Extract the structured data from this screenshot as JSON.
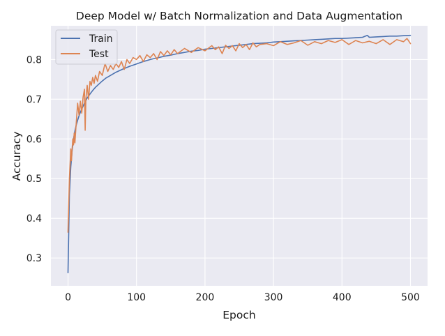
{
  "chart_data": {
    "type": "line",
    "title": "Deep Model w/ Batch Normalization and Data Augmentation",
    "xlabel": "Epoch",
    "ylabel": "Accuracy",
    "xlim": [
      -25,
      525
    ],
    "ylim": [
      0.23,
      0.885
    ],
    "xticks": [
      0,
      100,
      200,
      300,
      400,
      500
    ],
    "yticks": [
      0.3,
      0.4,
      0.5,
      0.6,
      0.7,
      0.8
    ],
    "grid": true,
    "legend_position": "top-left",
    "series": [
      {
        "name": "Train",
        "color": "#4c72b0",
        "x": [
          0,
          2,
          4,
          6,
          8,
          10,
          12,
          14,
          16,
          18,
          20,
          24,
          28,
          32,
          36,
          40,
          45,
          50,
          55,
          60,
          70,
          80,
          90,
          100,
          110,
          120,
          130,
          140,
          150,
          160,
          170,
          180,
          190,
          200,
          210,
          220,
          230,
          240,
          250,
          260,
          270,
          280,
          290,
          300,
          310,
          320,
          330,
          340,
          350,
          360,
          370,
          380,
          390,
          400,
          410,
          420,
          430,
          437,
          440,
          450,
          460,
          470,
          480,
          490,
          500
        ],
        "values": [
          0.263,
          0.46,
          0.53,
          0.57,
          0.6,
          0.62,
          0.635,
          0.647,
          0.658,
          0.667,
          0.675,
          0.69,
          0.703,
          0.713,
          0.722,
          0.73,
          0.738,
          0.746,
          0.753,
          0.758,
          0.768,
          0.776,
          0.783,
          0.789,
          0.795,
          0.8,
          0.804,
          0.808,
          0.811,
          0.815,
          0.818,
          0.821,
          0.823,
          0.826,
          0.828,
          0.83,
          0.832,
          0.834,
          0.836,
          0.838,
          0.84,
          0.841,
          0.842,
          0.844,
          0.845,
          0.846,
          0.847,
          0.848,
          0.849,
          0.85,
          0.851,
          0.852,
          0.853,
          0.853,
          0.854,
          0.855,
          0.856,
          0.861,
          0.856,
          0.857,
          0.858,
          0.859,
          0.859,
          0.86,
          0.861
        ]
      },
      {
        "name": "Test",
        "color": "#dd8452",
        "x": [
          0,
          2,
          4,
          5,
          6,
          7,
          8,
          9,
          10,
          12,
          14,
          16,
          18,
          20,
          22,
          24,
          25,
          26,
          28,
          30,
          32,
          34,
          36,
          38,
          40,
          43,
          46,
          50,
          54,
          58,
          62,
          66,
          70,
          74,
          78,
          82,
          86,
          90,
          95,
          100,
          105,
          110,
          115,
          120,
          125,
          130,
          135,
          140,
          145,
          150,
          155,
          160,
          170,
          180,
          190,
          200,
          210,
          215,
          220,
          225,
          230,
          235,
          240,
          245,
          250,
          255,
          260,
          265,
          270,
          275,
          280,
          290,
          300,
          310,
          320,
          330,
          340,
          350,
          360,
          370,
          380,
          390,
          400,
          410,
          420,
          430,
          440,
          450,
          460,
          470,
          480,
          490,
          495,
          500
        ],
        "values": [
          0.365,
          0.5,
          0.575,
          0.545,
          0.575,
          0.6,
          0.585,
          0.615,
          0.59,
          0.64,
          0.69,
          0.66,
          0.695,
          0.665,
          0.705,
          0.725,
          0.622,
          0.7,
          0.735,
          0.7,
          0.745,
          0.735,
          0.755,
          0.74,
          0.76,
          0.745,
          0.77,
          0.76,
          0.79,
          0.77,
          0.785,
          0.775,
          0.79,
          0.78,
          0.795,
          0.775,
          0.8,
          0.79,
          0.805,
          0.8,
          0.81,
          0.795,
          0.812,
          0.805,
          0.815,
          0.8,
          0.82,
          0.81,
          0.822,
          0.812,
          0.825,
          0.815,
          0.828,
          0.818,
          0.83,
          0.822,
          0.835,
          0.825,
          0.832,
          0.815,
          0.836,
          0.828,
          0.835,
          0.822,
          0.84,
          0.83,
          0.838,
          0.825,
          0.842,
          0.832,
          0.838,
          0.84,
          0.835,
          0.845,
          0.838,
          0.842,
          0.848,
          0.836,
          0.845,
          0.84,
          0.848,
          0.843,
          0.85,
          0.838,
          0.848,
          0.842,
          0.846,
          0.84,
          0.85,
          0.838,
          0.85,
          0.845,
          0.853,
          0.84
        ]
      }
    ]
  }
}
